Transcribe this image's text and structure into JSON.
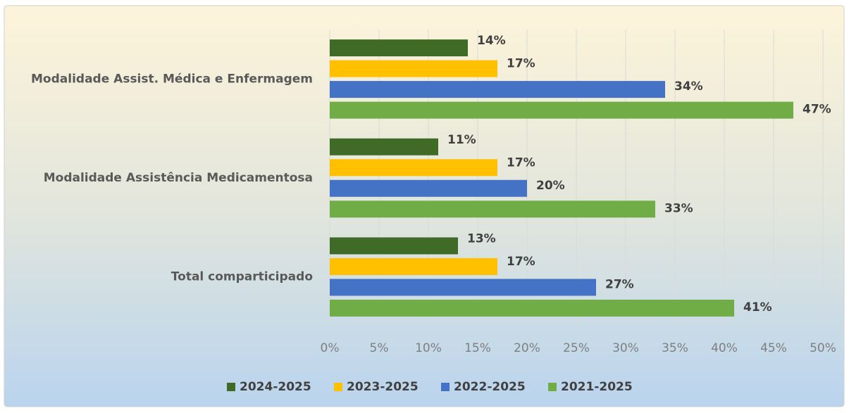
{
  "chart_data": {
    "type": "hbar",
    "categories": [
      "Modalidade Assist. Médica e Enfermagem",
      "Modalidade Assistência Medicamentosa",
      "Total comparticipado"
    ],
    "series": [
      {
        "name": "2024-2025",
        "color": "#3f6b26",
        "values": [
          14,
          11,
          13
        ],
        "value_labels": [
          "14%",
          "11%",
          "13%"
        ]
      },
      {
        "name": "2023-2025",
        "color": "#ffc000",
        "values": [
          17,
          17,
          17
        ],
        "value_labels": [
          "17%",
          "17%",
          "17%"
        ]
      },
      {
        "name": "2022-2025",
        "color": "#4472c4",
        "values": [
          34,
          20,
          27
        ],
        "value_labels": [
          "34%",
          "20%",
          "27%"
        ]
      },
      {
        "name": "2021-2025",
        "color": "#70ad47",
        "values": [
          47,
          33,
          41
        ],
        "value_labels": [
          "47%",
          "33%",
          "41%"
        ]
      }
    ],
    "xlim": [
      0,
      50
    ],
    "xticks": [
      {
        "value": 0,
        "label": "0%"
      },
      {
        "value": 5,
        "label": "5%"
      },
      {
        "value": 10,
        "label": "10%"
      },
      {
        "value": 15,
        "label": "15%"
      },
      {
        "value": 20,
        "label": "20%"
      },
      {
        "value": 25,
        "label": "25%"
      },
      {
        "value": 30,
        "label": "30%"
      },
      {
        "value": 35,
        "label": "35%"
      },
      {
        "value": 40,
        "label": "40%"
      },
      {
        "value": 45,
        "label": "45%"
      },
      {
        "value": 50,
        "label": "50%"
      }
    ],
    "grid": true,
    "legend": "bottom"
  }
}
